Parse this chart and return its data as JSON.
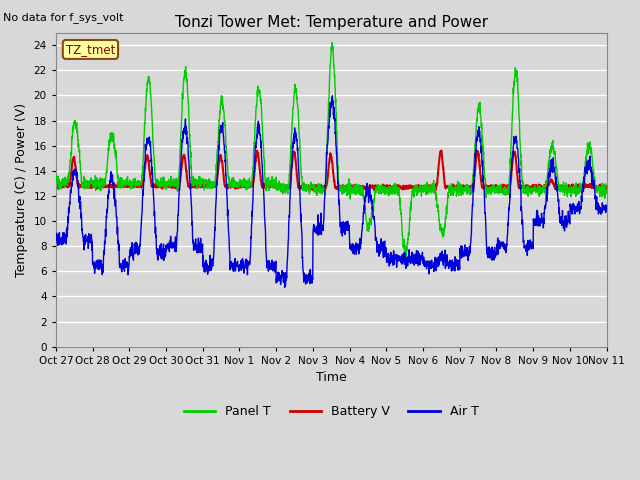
{
  "title": "Tonzi Tower Met: Temperature and Power",
  "subtitle": "No data for f_sys_volt",
  "xlabel": "Time",
  "ylabel": "Temperature (C) / Power (V)",
  "ylim": [
    0,
    25
  ],
  "yticks": [
    0,
    2,
    4,
    6,
    8,
    10,
    12,
    14,
    16,
    18,
    20,
    22,
    24
  ],
  "xtick_labels": [
    "Oct 27",
    "Oct 28",
    "Oct 29",
    "Oct 30",
    "Oct 31",
    "Nov 1",
    "Nov 2",
    "Nov 3",
    "Nov 4",
    "Nov 5",
    "Nov 6",
    "Nov 7",
    "Nov 8",
    "Nov 9",
    "Nov 10",
    "Nov 11"
  ],
  "legend_entries": [
    "Panel T",
    "Battery V",
    "Air T"
  ],
  "legend_colors": [
    "#00cc00",
    "#cc0000",
    "#0000cc"
  ],
  "annotation_text": "TZ_tmet",
  "bg_color": "#d8d8d8",
  "plot_bg_color": "#d8d8d8",
  "grid_color": "#ffffff",
  "line_colors": {
    "panel": "#00cc00",
    "battery": "#cc0000",
    "air": "#0000dd"
  },
  "figsize": [
    6.4,
    4.8
  ],
  "dpi": 100
}
